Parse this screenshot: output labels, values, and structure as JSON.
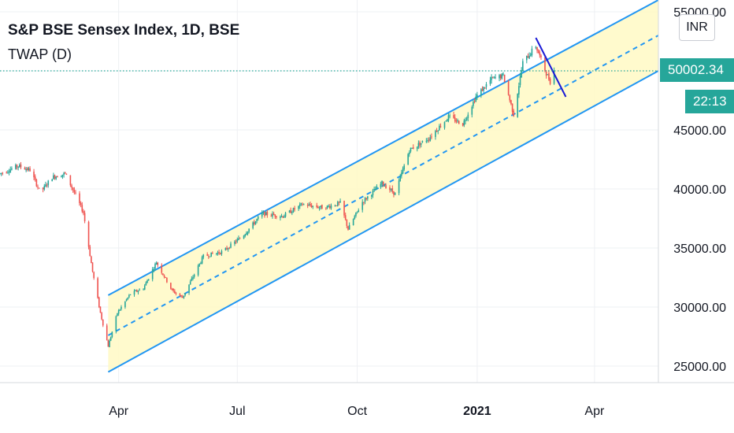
{
  "title": "S&P BSE Sensex Index, 1D, BSE",
  "indicator": "TWAP (D)",
  "currency_button": "INR",
  "last_price": "50002.34",
  "countdown": "22:13",
  "colors": {
    "up": "#26a69a",
    "down": "#ef5350",
    "channel": "#2196f3",
    "channel_fill": "#fff9c4",
    "drawn_line": "#1a1ad6",
    "price_line": "#26a69a"
  },
  "chart_data": {
    "type": "candlestick",
    "title": "S&P BSE Sensex Index, 1D, BSE",
    "x_ticks": [
      {
        "label": "Apr",
        "bold": false
      },
      {
        "label": "Jul",
        "bold": false
      },
      {
        "label": "Oct",
        "bold": false
      },
      {
        "label": "2021",
        "bold": true
      },
      {
        "label": "Apr",
        "bold": false
      }
    ],
    "y_ticks": [
      "25000.00",
      "30000.00",
      "35000.00",
      "40000.00",
      "45000.00",
      "50000.00",
      "55000.00"
    ],
    "ylim": [
      23000,
      56000
    ],
    "xlim": [
      "2020-01-01",
      "2021-05-20"
    ],
    "grid": true,
    "last_price": 50002.34,
    "price_series": [
      [
        "2020-01-01",
        41300
      ],
      [
        "2020-01-15",
        41950
      ],
      [
        "2020-01-24",
        41600
      ],
      [
        "2020-02-01",
        39700
      ],
      [
        "2020-02-10",
        41000
      ],
      [
        "2020-02-20",
        41300
      ],
      [
        "2020-02-27",
        39700
      ],
      [
        "2020-03-05",
        38000
      ],
      [
        "2020-03-12",
        33000
      ],
      [
        "2020-03-18",
        29500
      ],
      [
        "2020-03-24",
        26700
      ],
      [
        "2020-03-31",
        29500
      ],
      [
        "2020-04-10",
        31100
      ],
      [
        "2020-04-20",
        31600
      ],
      [
        "2020-04-30",
        33800
      ],
      [
        "2020-05-12",
        31400
      ],
      [
        "2020-05-20",
        30800
      ],
      [
        "2020-06-05",
        34300
      ],
      [
        "2020-06-20",
        34700
      ],
      [
        "2020-07-05",
        36000
      ],
      [
        "2020-07-20",
        37900
      ],
      [
        "2020-08-05",
        37700
      ],
      [
        "2020-08-20",
        38700
      ],
      [
        "2020-09-05",
        38400
      ],
      [
        "2020-09-18",
        38800
      ],
      [
        "2020-09-24",
        36600
      ],
      [
        "2020-10-05",
        38900
      ],
      [
        "2020-10-20",
        40500
      ],
      [
        "2020-10-30",
        39600
      ],
      [
        "2020-11-10",
        43300
      ],
      [
        "2020-11-25",
        44300
      ],
      [
        "2020-12-10",
        46100
      ],
      [
        "2020-12-21",
        45500
      ],
      [
        "2020-12-31",
        47800
      ],
      [
        "2021-01-12",
        49300
      ],
      [
        "2021-01-21",
        49600
      ],
      [
        "2021-01-29",
        46300
      ],
      [
        "2021-02-05",
        50700
      ],
      [
        "2021-02-15",
        52100
      ],
      [
        "2021-02-23",
        49800
      ],
      [
        "2021-02-26",
        49100
      ],
      [
        "2021-03-01",
        50000
      ]
    ],
    "channel": {
      "upper": [
        [
          "2020-03-24",
          31000
        ],
        [
          "2021-05-20",
          56000
        ]
      ],
      "middle": [
        [
          "2020-03-24",
          27600
        ],
        [
          "2021-05-20",
          53000
        ]
      ],
      "lower": [
        [
          "2020-03-24",
          24500
        ],
        [
          "2021-05-20",
          50000
        ]
      ]
    },
    "drawn_line": [
      [
        "2021-02-15",
        52800
      ],
      [
        "2021-03-10",
        47800
      ]
    ]
  }
}
